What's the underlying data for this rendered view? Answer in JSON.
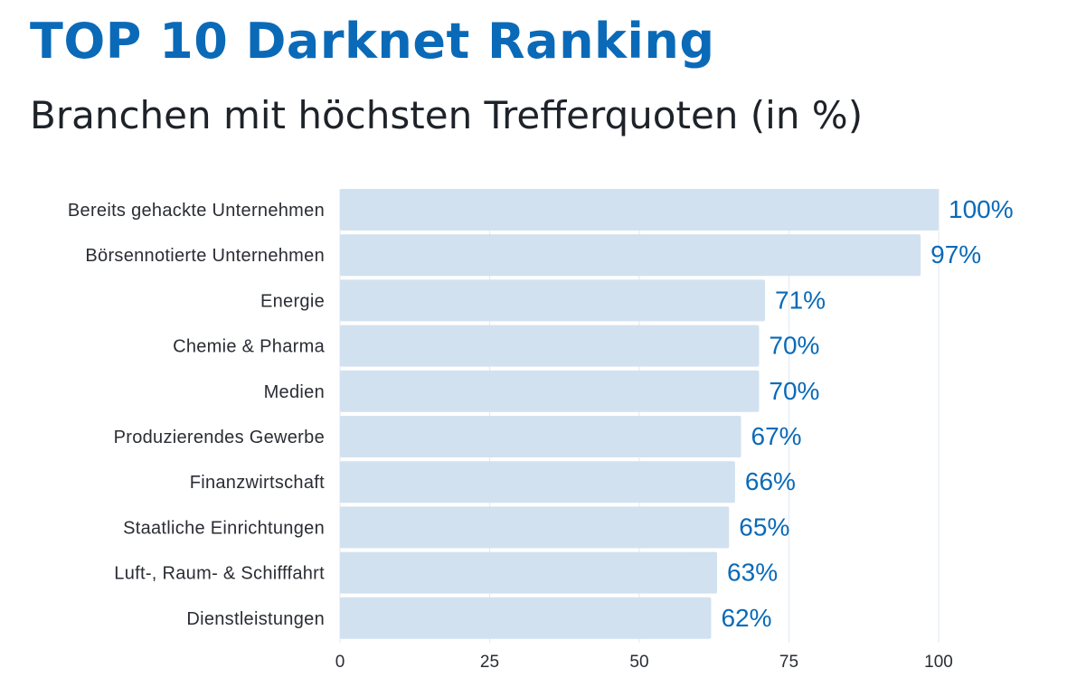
{
  "header": {
    "title": "TOP 10 Darknet Ranking",
    "subtitle": "Branchen mit höchsten Trefferquoten (in %)"
  },
  "colors": {
    "title": "#0a6ab8",
    "value_labels": "#0a6ab8",
    "bars": "#d2e1f0",
    "grid": "#e4ebf3"
  },
  "chart_data": {
    "type": "bar",
    "orientation": "horizontal",
    "categories": [
      "Bereits gehackte Unternehmen",
      "Börsennotierte Unternehmen",
      "Energie",
      "Chemie & Pharma",
      "Medien",
      "Produzierendes Gewerbe",
      "Finanzwirtschaft",
      "Staatliche Einrichtungen",
      "Luft-, Raum- & Schifffahrt",
      "Dienstleistungen"
    ],
    "values": [
      100,
      97,
      71,
      70,
      70,
      67,
      66,
      65,
      63,
      62
    ],
    "value_labels": [
      "100%",
      "97%",
      "71%",
      "70%",
      "70%",
      "67%",
      "66%",
      "65%",
      "63%",
      "62%"
    ],
    "xlim": [
      0,
      100
    ],
    "xticks": [
      0,
      25,
      50,
      75,
      100
    ],
    "xtick_labels": [
      "0",
      "25",
      "50",
      "75",
      "100"
    ],
    "grid": true,
    "legend": false
  }
}
